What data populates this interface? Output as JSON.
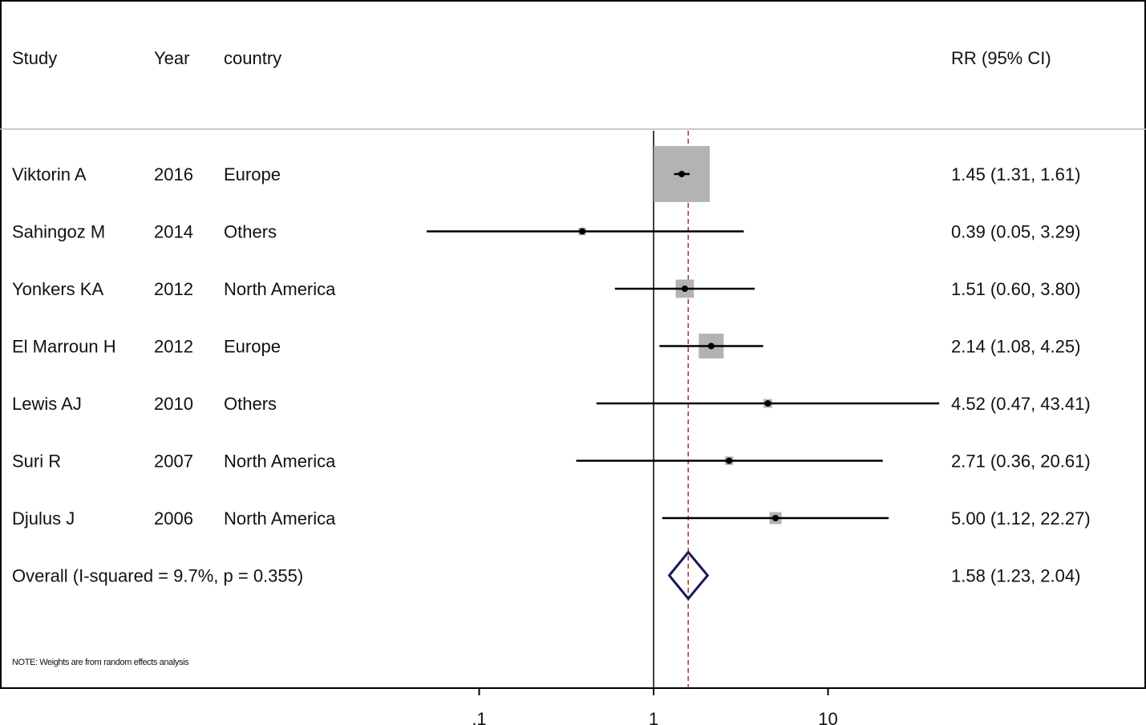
{
  "chart_data": {
    "type": "forest",
    "columns": {
      "study": "Study",
      "year": "Year",
      "country": "country",
      "estimate": "RR (95% CI)"
    },
    "rows": [
      {
        "study": "Viktorin A",
        "year": "2016",
        "country": "Europe",
        "rr": 1.45,
        "lo": 1.31,
        "hi": 1.61,
        "weight": 66,
        "label": "1.45 (1.31, 1.61)"
      },
      {
        "study": "Sahingoz M",
        "year": "2014",
        "country": "Others",
        "rr": 0.39,
        "lo": 0.05,
        "hi": 3.29,
        "weight": 1.2,
        "label": "0.39 (0.05, 3.29)"
      },
      {
        "study": "Yonkers KA",
        "year": "2012",
        "country": "North America",
        "rr": 1.51,
        "lo": 0.6,
        "hi": 3.8,
        "weight": 7,
        "label": "1.51 (0.60, 3.80)"
      },
      {
        "study": "El Marroun H",
        "year": "2012",
        "country": "Europe",
        "rr": 2.14,
        "lo": 1.08,
        "hi": 4.25,
        "weight": 13,
        "label": "2.14 (1.08, 4.25)"
      },
      {
        "study": "Lewis AJ",
        "year": "2010",
        "country": "Others",
        "rr": 4.52,
        "lo": 0.47,
        "hi": 43.41,
        "weight": 1.6,
        "label": "4.52 (0.47, 43.41)"
      },
      {
        "study": "Suri R",
        "year": "2007",
        "country": "North America",
        "rr": 2.71,
        "lo": 0.36,
        "hi": 20.61,
        "weight": 1.5,
        "label": "2.71 (0.36, 20.61)"
      },
      {
        "study": "Djulus J",
        "year": "2006",
        "country": "North America",
        "rr": 5.0,
        "lo": 1.12,
        "hi": 22.27,
        "weight": 3,
        "label": "5.00 (1.12, 22.27)"
      }
    ],
    "overall": {
      "label_text": "Overall  (I-squared = 9.7%, p = 0.355)",
      "rr": 1.58,
      "lo": 1.23,
      "hi": 2.04,
      "label": "1.58 (1.23, 2.04)"
    },
    "note": "NOTE: Weights are from random effects analysis",
    "x_axis": {
      "scale": "log",
      "ticks": [
        0.1,
        1,
        10
      ],
      "tick_labels": [
        ".1",
        "1",
        "10"
      ]
    },
    "colors": {
      "box": "#b3b3b3",
      "ci_line": "#000000",
      "overall_diamond": "#1a1a5a",
      "overall_line": "#b03030",
      "text": "#111111"
    }
  }
}
